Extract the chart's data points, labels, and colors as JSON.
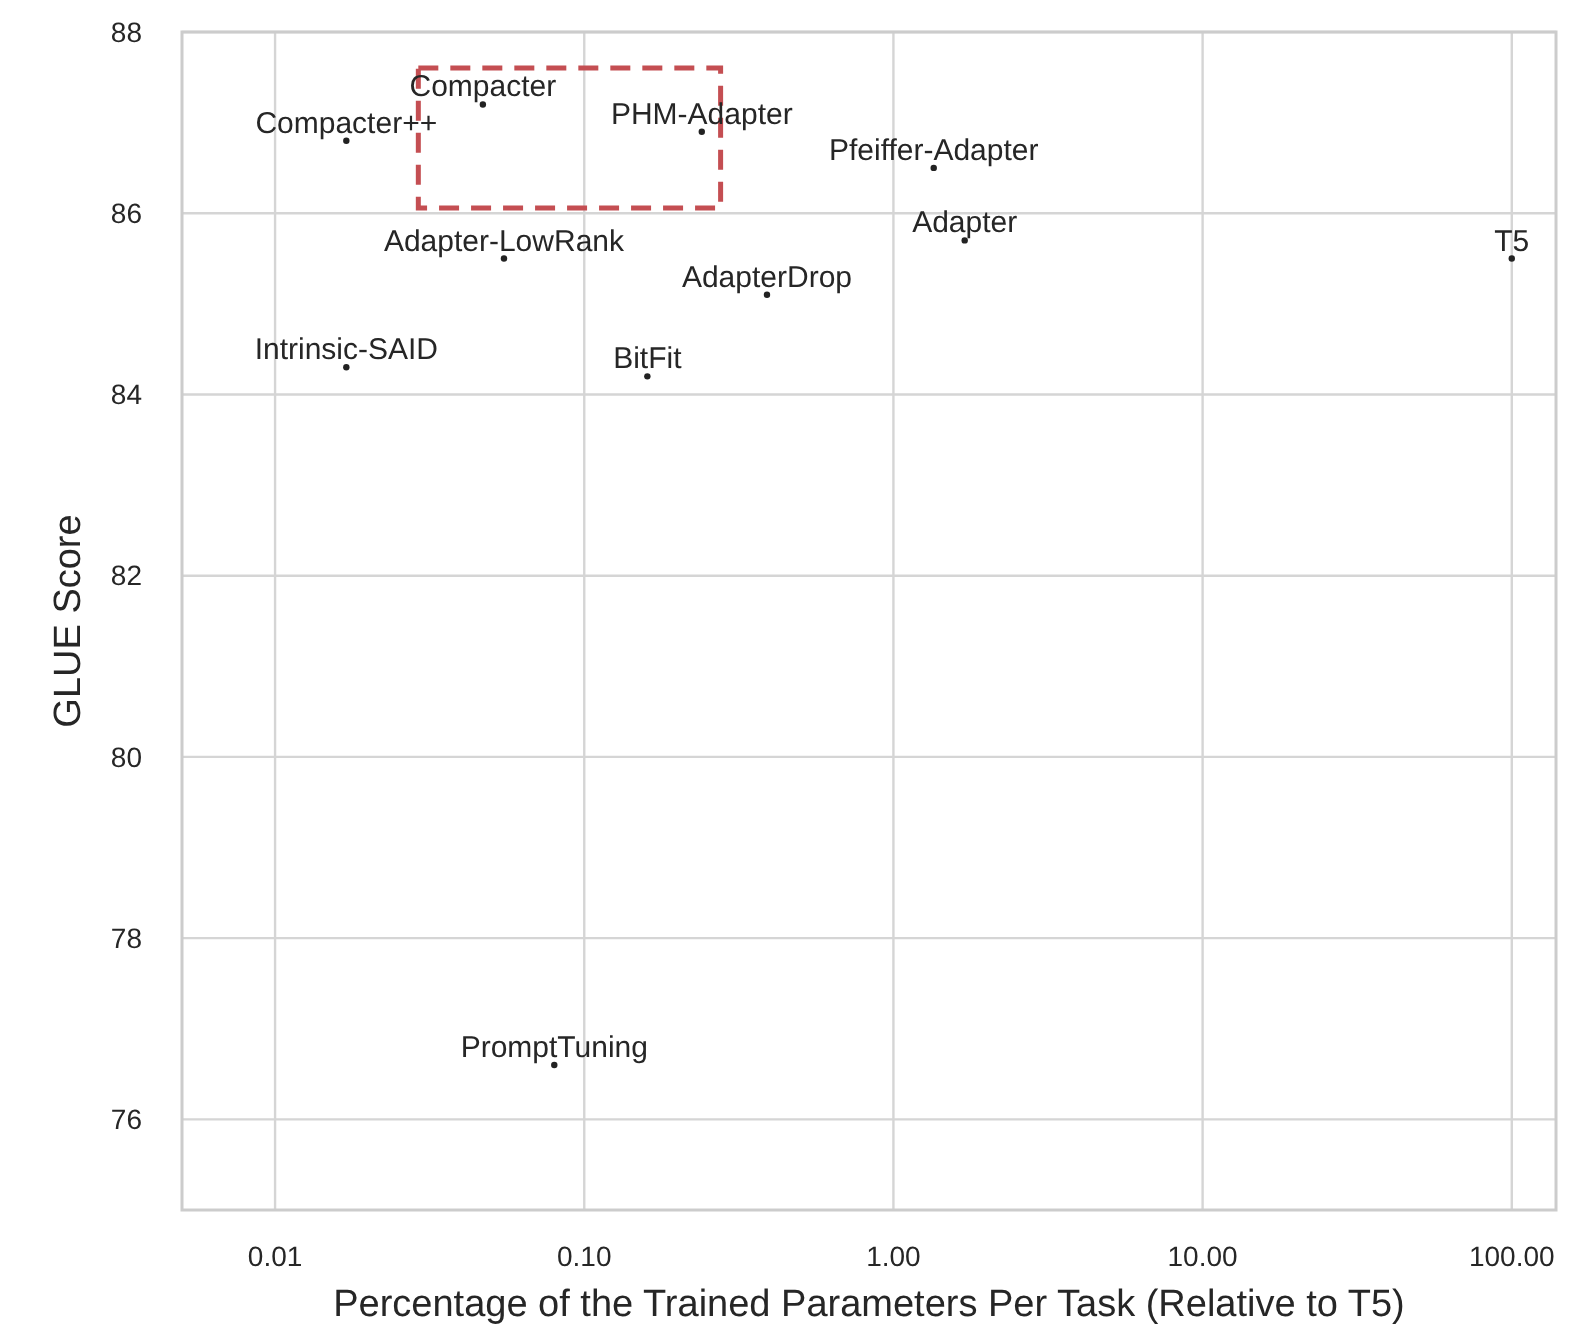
{
  "chart_data": {
    "type": "scatter",
    "xlabel": "Percentage of the Trained Parameters Per Task (Relative to T5)",
    "ylabel": "GLUE Score",
    "log": "x",
    "xlim": [
      0.005,
      139
    ],
    "ylim": [
      75,
      88
    ],
    "xticks": [
      {
        "value": 0.01,
        "label": "0.01"
      },
      {
        "value": 0.1,
        "label": "0.10"
      },
      {
        "value": 1,
        "label": "1.00"
      },
      {
        "value": 10,
        "label": "10.00"
      },
      {
        "value": 100,
        "label": "100.00"
      }
    ],
    "yticks": [
      76,
      78,
      80,
      82,
      84,
      86,
      88
    ],
    "grid": true,
    "marker": "circle",
    "series": [
      {
        "color": "#222222",
        "x": [
          0.047,
          0.017,
          0.24,
          1.35,
          1.7,
          0.055,
          0.39,
          0.017,
          0.16,
          100,
          0.08
        ],
        "values": [
          87.2,
          86.8,
          86.9,
          86.5,
          85.7,
          85.5,
          85.1,
          84.3,
          84.2,
          85.5,
          76.6
        ]
      }
    ],
    "annotations": [
      {
        "text": "Compacter",
        "x": 0.047,
        "y": 87.2
      },
      {
        "text": "Compacter++",
        "x": 0.017,
        "y": 86.8
      },
      {
        "text": "PHM-Adapter",
        "x": 0.24,
        "y": 86.9
      },
      {
        "text": "Pfeiffer-Adapter",
        "x": 1.35,
        "y": 86.5
      },
      {
        "text": "Adapter",
        "x": 1.7,
        "y": 85.7
      },
      {
        "text": "Adapter-LowRank",
        "x": 0.055,
        "y": 85.5
      },
      {
        "text": "AdapterDrop",
        "x": 0.39,
        "y": 85.1
      },
      {
        "text": "Intrinsic-SAID",
        "x": 0.017,
        "y": 84.3
      },
      {
        "text": "BitFit",
        "x": 0.16,
        "y": 84.2
      },
      {
        "text": "T5",
        "x": 100,
        "y": 85.5
      },
      {
        "text": "PromptTuning",
        "x": 0.08,
        "y": 76.6
      }
    ]
  }
}
